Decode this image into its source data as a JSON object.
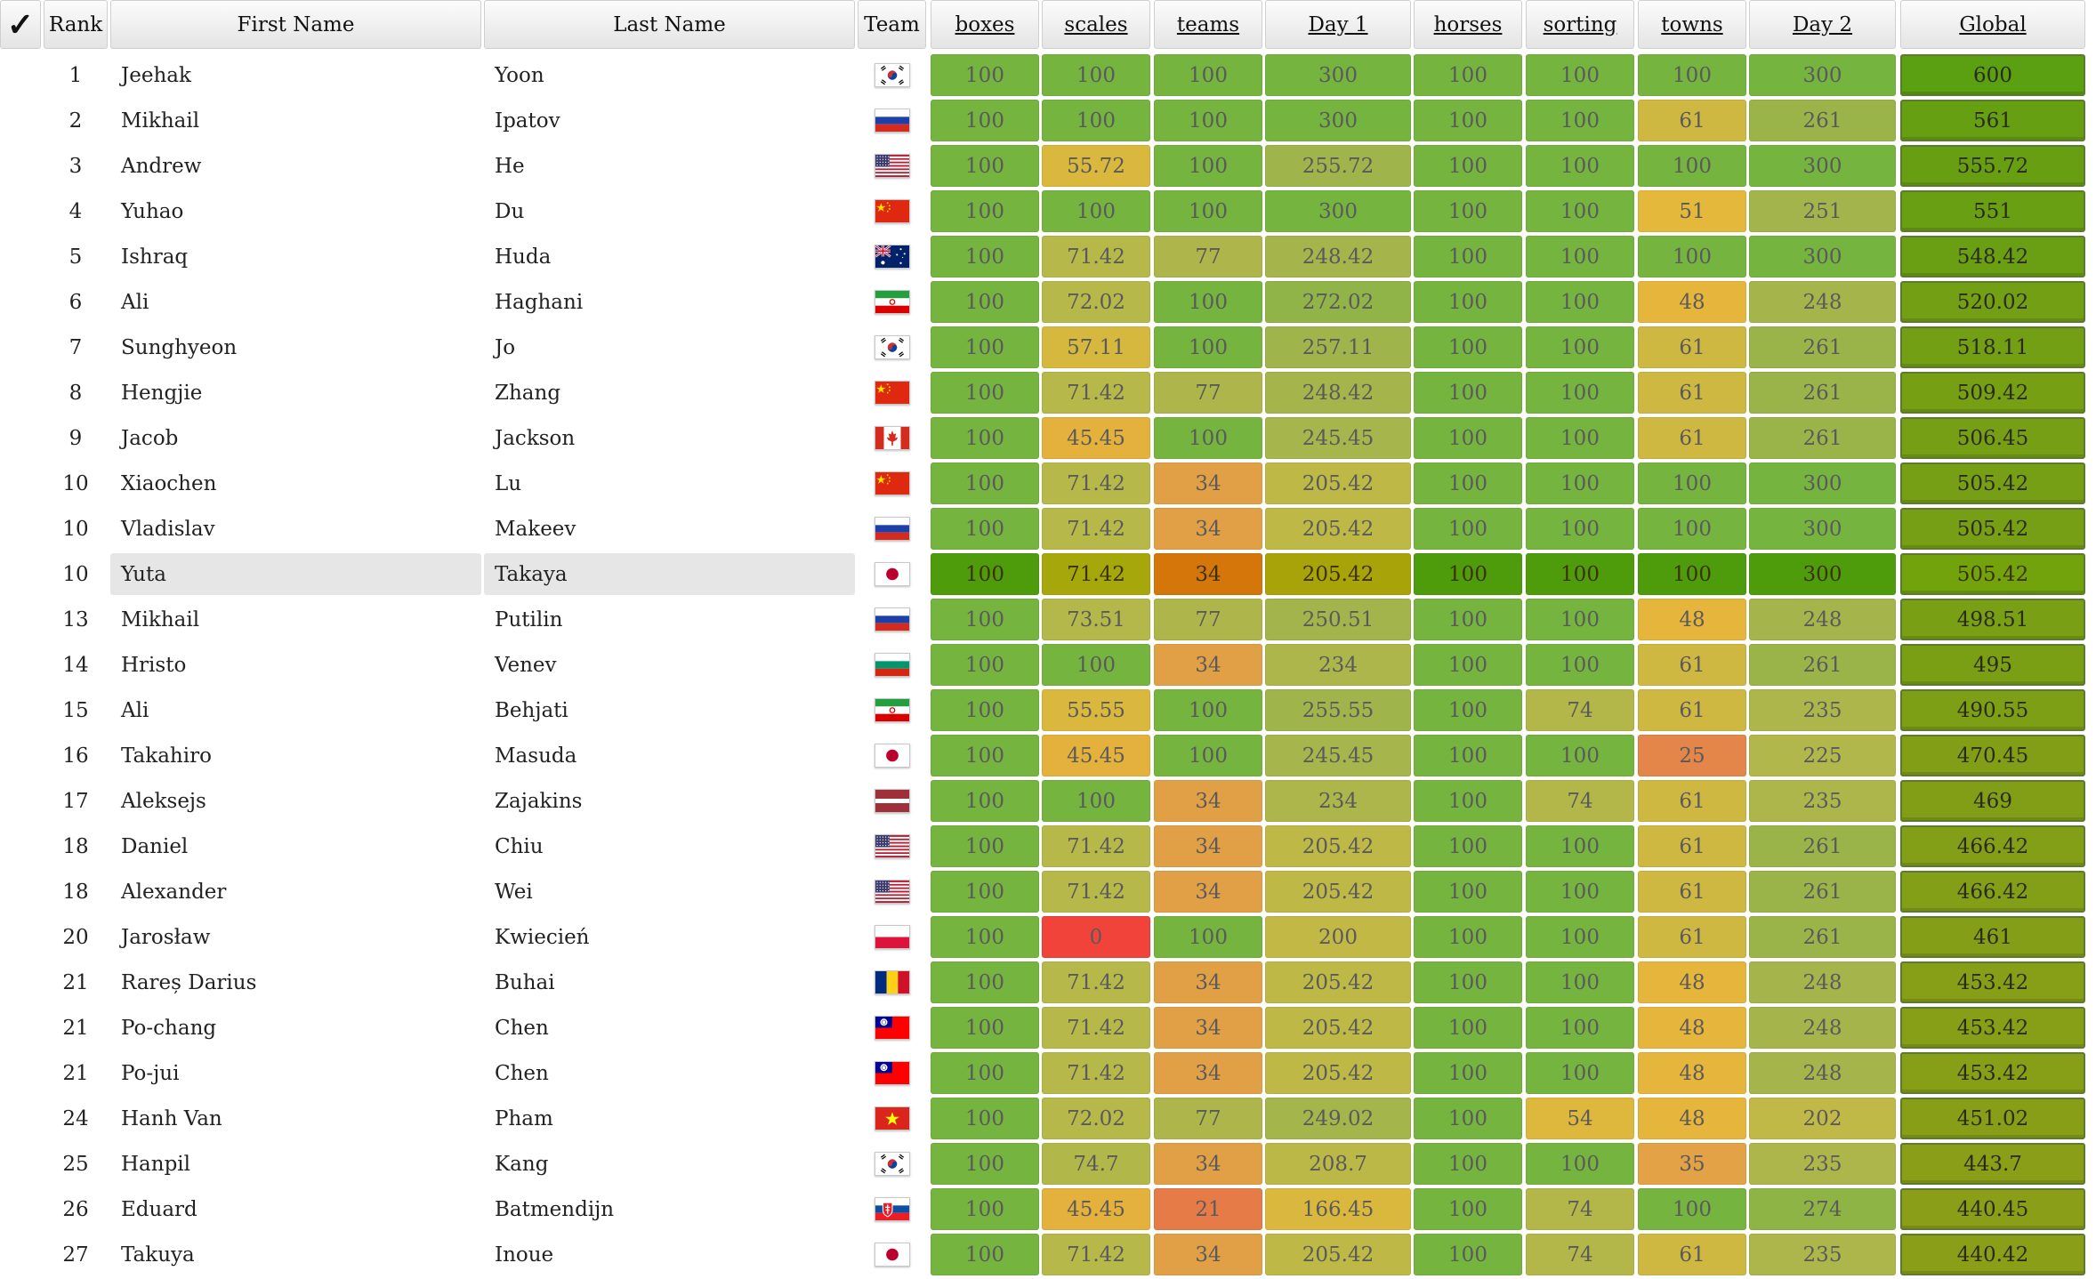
{
  "headers": {
    "check": "✓",
    "rank": "Rank",
    "first": "First Name",
    "last": "Last Name",
    "team": "Team",
    "tasks": [
      "boxes",
      "scales",
      "teams",
      "Day 1",
      "horses",
      "sorting",
      "towns",
      "Day 2",
      "Global"
    ]
  },
  "colors": {
    "full_score": "#75b43e",
    "zero_score": "#f1433a",
    "mid_score": "#e6b83a",
    "global_top": "#5aa010",
    "global_low": "#8c9e18",
    "highlight_row_green": "#4e9c0c",
    "highlight_row_orange": "#d5760a"
  },
  "highlighted_row": 11,
  "rows": [
    {
      "rank": "1",
      "first": "Jeehak",
      "last": "Yoon",
      "flag": "kr-flag-icon",
      "scores": [
        "100",
        "100",
        "100",
        "300",
        "100",
        "100",
        "100",
        "300",
        "600"
      ]
    },
    {
      "rank": "2",
      "first": "Mikhail",
      "last": "Ipatov",
      "flag": "ru-flag-icon",
      "scores": [
        "100",
        "100",
        "100",
        "300",
        "100",
        "100",
        "61",
        "261",
        "561"
      ]
    },
    {
      "rank": "3",
      "first": "Andrew",
      "last": "He",
      "flag": "us-flag-icon",
      "scores": [
        "100",
        "55.72",
        "100",
        "255.72",
        "100",
        "100",
        "100",
        "300",
        "555.72"
      ]
    },
    {
      "rank": "4",
      "first": "Yuhao",
      "last": "Du",
      "flag": "cn-flag-icon",
      "scores": [
        "100",
        "100",
        "100",
        "300",
        "100",
        "100",
        "51",
        "251",
        "551"
      ]
    },
    {
      "rank": "5",
      "first": "Ishraq",
      "last": "Huda",
      "flag": "au-flag-icon",
      "scores": [
        "100",
        "71.42",
        "77",
        "248.42",
        "100",
        "100",
        "100",
        "300",
        "548.42"
      ]
    },
    {
      "rank": "6",
      "first": "Ali",
      "last": "Haghani",
      "flag": "ir-flag-icon",
      "scores": [
        "100",
        "72.02",
        "100",
        "272.02",
        "100",
        "100",
        "48",
        "248",
        "520.02"
      ]
    },
    {
      "rank": "7",
      "first": "Sunghyeon",
      "last": "Jo",
      "flag": "kr-flag-icon",
      "scores": [
        "100",
        "57.11",
        "100",
        "257.11",
        "100",
        "100",
        "61",
        "261",
        "518.11"
      ]
    },
    {
      "rank": "8",
      "first": "Hengjie",
      "last": "Zhang",
      "flag": "cn-flag-icon",
      "scores": [
        "100",
        "71.42",
        "77",
        "248.42",
        "100",
        "100",
        "61",
        "261",
        "509.42"
      ]
    },
    {
      "rank": "9",
      "first": "Jacob",
      "last": "Jackson",
      "flag": "ca-flag-icon",
      "scores": [
        "100",
        "45.45",
        "100",
        "245.45",
        "100",
        "100",
        "61",
        "261",
        "506.45"
      ]
    },
    {
      "rank": "10",
      "first": "Xiaochen",
      "last": "Lu",
      "flag": "cn-flag-icon",
      "scores": [
        "100",
        "71.42",
        "34",
        "205.42",
        "100",
        "100",
        "100",
        "300",
        "505.42"
      ]
    },
    {
      "rank": "10",
      "first": "Vladislav",
      "last": "Makeev",
      "flag": "ru-flag-icon",
      "scores": [
        "100",
        "71.42",
        "34",
        "205.42",
        "100",
        "100",
        "100",
        "300",
        "505.42"
      ]
    },
    {
      "rank": "10",
      "first": "Yuta",
      "last": "Takaya",
      "flag": "jp-flag-icon",
      "scores": [
        "100",
        "71.42",
        "34",
        "205.42",
        "100",
        "100",
        "100",
        "300",
        "505.42"
      ]
    },
    {
      "rank": "13",
      "first": "Mikhail",
      "last": "Putilin",
      "flag": "ru-flag-icon",
      "scores": [
        "100",
        "73.51",
        "77",
        "250.51",
        "100",
        "100",
        "48",
        "248",
        "498.51"
      ]
    },
    {
      "rank": "14",
      "first": "Hristo",
      "last": "Venev",
      "flag": "bg-flag-icon",
      "scores": [
        "100",
        "100",
        "34",
        "234",
        "100",
        "100",
        "61",
        "261",
        "495"
      ]
    },
    {
      "rank": "15",
      "first": "Ali",
      "last": "Behjati",
      "flag": "ir-flag-icon",
      "scores": [
        "100",
        "55.55",
        "100",
        "255.55",
        "100",
        "74",
        "61",
        "235",
        "490.55"
      ]
    },
    {
      "rank": "16",
      "first": "Takahiro",
      "last": "Masuda",
      "flag": "jp-flag-icon",
      "scores": [
        "100",
        "45.45",
        "100",
        "245.45",
        "100",
        "100",
        "25",
        "225",
        "470.45"
      ]
    },
    {
      "rank": "17",
      "first": "Aleksejs",
      "last": "Zajakins",
      "flag": "lv-flag-icon",
      "scores": [
        "100",
        "100",
        "34",
        "234",
        "100",
        "74",
        "61",
        "235",
        "469"
      ]
    },
    {
      "rank": "18",
      "first": "Daniel",
      "last": "Chiu",
      "flag": "us-flag-icon",
      "scores": [
        "100",
        "71.42",
        "34",
        "205.42",
        "100",
        "100",
        "61",
        "261",
        "466.42"
      ]
    },
    {
      "rank": "18",
      "first": "Alexander",
      "last": "Wei",
      "flag": "us-flag-icon",
      "scores": [
        "100",
        "71.42",
        "34",
        "205.42",
        "100",
        "100",
        "61",
        "261",
        "466.42"
      ]
    },
    {
      "rank": "20",
      "first": "Jarosław",
      "last": "Kwiecień",
      "flag": "pl-flag-icon",
      "scores": [
        "100",
        "0",
        "100",
        "200",
        "100",
        "100",
        "61",
        "261",
        "461"
      ]
    },
    {
      "rank": "21",
      "first": "Rareș Darius",
      "last": "Buhai",
      "flag": "ro-flag-icon",
      "scores": [
        "100",
        "71.42",
        "34",
        "205.42",
        "100",
        "100",
        "48",
        "248",
        "453.42"
      ]
    },
    {
      "rank": "21",
      "first": "Po-chang",
      "last": "Chen",
      "flag": "tw-flag-icon",
      "scores": [
        "100",
        "71.42",
        "34",
        "205.42",
        "100",
        "100",
        "48",
        "248",
        "453.42"
      ]
    },
    {
      "rank": "21",
      "first": "Po-jui",
      "last": "Chen",
      "flag": "tw-flag-icon",
      "scores": [
        "100",
        "71.42",
        "34",
        "205.42",
        "100",
        "100",
        "48",
        "248",
        "453.42"
      ]
    },
    {
      "rank": "24",
      "first": "Hanh Van",
      "last": "Pham",
      "flag": "vn-flag-icon",
      "scores": [
        "100",
        "72.02",
        "77",
        "249.02",
        "100",
        "54",
        "48",
        "202",
        "451.02"
      ]
    },
    {
      "rank": "25",
      "first": "Hanpil",
      "last": "Kang",
      "flag": "kr-flag-icon",
      "scores": [
        "100",
        "74.7",
        "34",
        "208.7",
        "100",
        "100",
        "35",
        "235",
        "443.7"
      ]
    },
    {
      "rank": "26",
      "first": "Eduard",
      "last": "Batmendijn",
      "flag": "sk-flag-icon",
      "scores": [
        "100",
        "45.45",
        "21",
        "166.45",
        "100",
        "74",
        "100",
        "274",
        "440.45"
      ]
    },
    {
      "rank": "27",
      "first": "Takuya",
      "last": "Inoue",
      "flag": "jp-flag-icon",
      "scores": [
        "100",
        "71.42",
        "34",
        "205.42",
        "100",
        "74",
        "61",
        "235",
        "440.42"
      ]
    }
  ]
}
